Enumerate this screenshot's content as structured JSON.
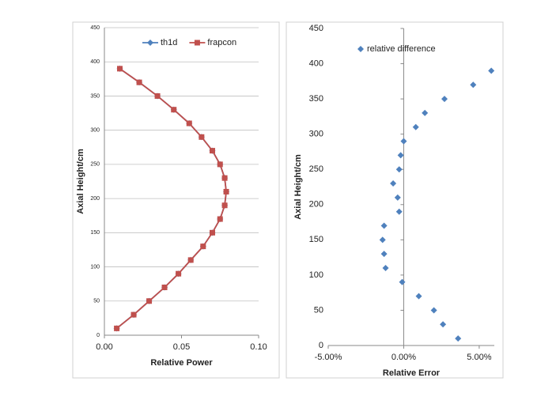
{
  "chart_data": [
    {
      "type": "line",
      "xlabel": "Relative Power",
      "ylabel": "Axial Height/cm",
      "xlim": [
        0,
        0.1
      ],
      "ylim": [
        0,
        450
      ],
      "xticks": [
        {
          "value": 0,
          "label": "0.00"
        },
        {
          "value": 0.05,
          "label": "0.05"
        },
        {
          "value": 0.1,
          "label": "0.10"
        }
      ],
      "yticks": [
        0,
        50,
        100,
        150,
        200,
        250,
        300,
        350,
        400,
        450
      ],
      "grid": true,
      "legend": "top",
      "series": [
        {
          "name": "th1d",
          "color": "#4f81bd",
          "marker": "diamond",
          "x": [
            0.008,
            0.019,
            0.029,
            0.039,
            0.048,
            0.056,
            0.064,
            0.07,
            0.075,
            0.078,
            0.079,
            0.078,
            0.075,
            0.07,
            0.063,
            0.055,
            0.045,
            0.0344,
            0.0226,
            0.01
          ],
          "values": [
            10,
            30,
            50,
            70,
            90,
            110,
            130,
            150,
            170,
            190,
            210,
            230,
            250,
            270,
            290,
            310,
            330,
            350,
            370,
            390
          ]
        },
        {
          "name": "frapcon",
          "color": "#c0504d",
          "marker": "square",
          "x": [
            0.008,
            0.019,
            0.029,
            0.039,
            0.048,
            0.056,
            0.064,
            0.07,
            0.075,
            0.078,
            0.079,
            0.078,
            0.075,
            0.07,
            0.063,
            0.055,
            0.045,
            0.0344,
            0.0226,
            0.01
          ],
          "values": [
            10,
            30,
            50,
            70,
            90,
            110,
            130,
            150,
            170,
            190,
            210,
            230,
            250,
            270,
            290,
            310,
            330,
            350,
            370,
            390
          ]
        }
      ]
    },
    {
      "type": "scatter",
      "xlabel": "Relative Error",
      "ylabel": "Axial Height/cm",
      "xlim": [
        -5,
        6
      ],
      "ylim": [
        0,
        450
      ],
      "xticks": [
        {
          "value": -5,
          "label": "-5.00%"
        },
        {
          "value": 0,
          "label": "0.00%"
        },
        {
          "value": 5,
          "label": "5.00%"
        }
      ],
      "yticks": [
        0,
        50,
        100,
        150,
        200,
        250,
        300,
        350,
        400,
        450
      ],
      "grid": false,
      "legend": "top-left",
      "series": [
        {
          "name": "relative difference",
          "color": "#4f81bd",
          "marker": "diamond",
          "x": [
            3.6,
            2.6,
            2.0,
            1.0,
            -0.1,
            -1.2,
            -1.3,
            -1.4,
            -1.3,
            -0.3,
            -0.4,
            -0.7,
            -0.3,
            -0.2,
            0.0,
            0.8,
            1.4,
            2.7,
            4.6,
            5.8
          ],
          "values": [
            10,
            30,
            50,
            70,
            90,
            110,
            130,
            150,
            170,
            190,
            210,
            230,
            250,
            270,
            290,
            310,
            330,
            350,
            370,
            390
          ]
        }
      ]
    }
  ]
}
